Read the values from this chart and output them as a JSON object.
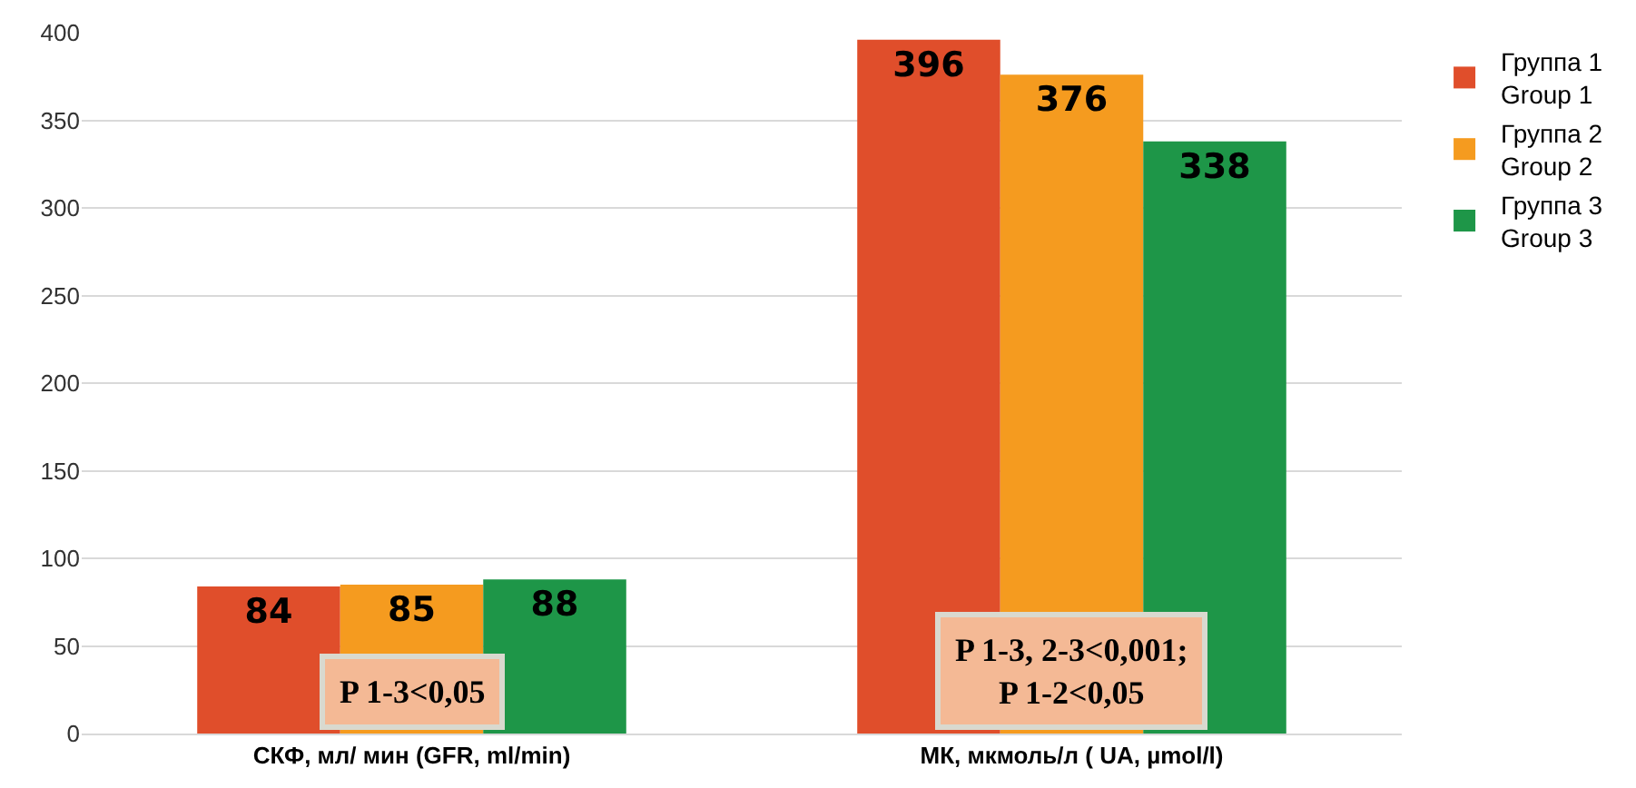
{
  "chart_data": {
    "type": "bar",
    "categories": [
      "СКФ, мл/ мин (GFR, ml/min)",
      "МК, мкмоль/л ( UA, µmol/l)"
    ],
    "series": [
      {
        "name": "Группа 1\nGroup 1",
        "color": "#e04e2b",
        "values": [
          84,
          396
        ]
      },
      {
        "name": "Группа 2\nGroup 2",
        "color": "#f59b1f",
        "values": [
          85,
          376
        ]
      },
      {
        "name": "Группа 3\nGroup 3",
        "color": "#1e9648",
        "values": [
          88,
          338
        ]
      }
    ],
    "ylim": [
      0,
      400
    ],
    "yticks": [
      0,
      50,
      100,
      150,
      200,
      250,
      300,
      350,
      400
    ],
    "grid": "y",
    "legend": "top right",
    "data_labels": true,
    "annotations": [
      "P 1-3<0,05",
      "P 1-3, 2-3<0,001;\nP 1-2<0,05"
    ]
  }
}
